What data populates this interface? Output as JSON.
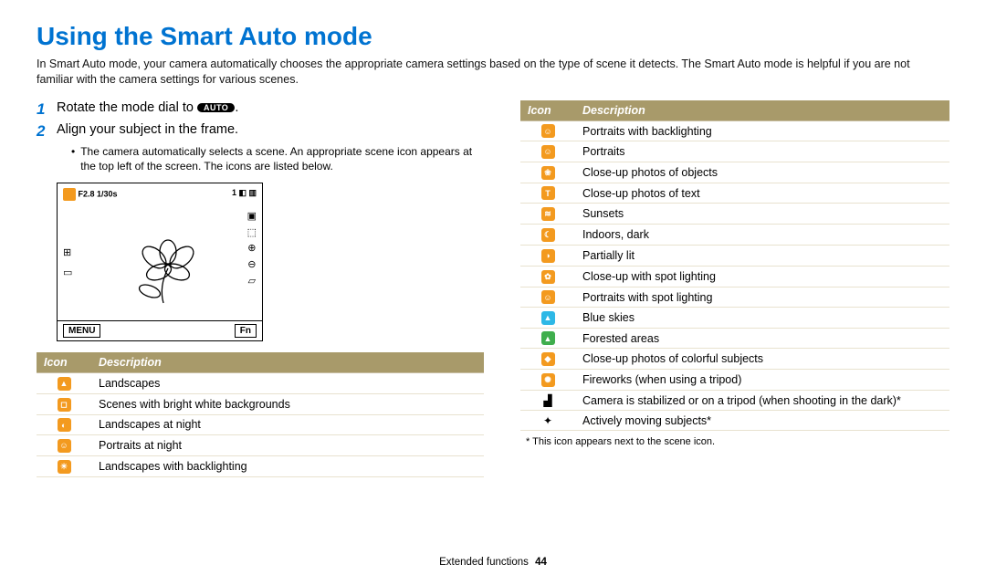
{
  "title": "Using the Smart Auto mode",
  "intro": "In Smart Auto mode, your camera automatically chooses the appropriate camera settings based on the type of scene it detects. The Smart Auto mode is helpful if you are not familiar with the camera settings for various scenes.",
  "steps": {
    "s1": "Rotate the mode dial to",
    "s1_pill": "AUTO",
    "s1_tail": ".",
    "s2": "Align your subject in the frame.",
    "bullet": "The camera automatically selects a scene. An appropriate scene icon appears at the top left of the screen. The icons are listed below."
  },
  "screen": {
    "exposure": "F2.8 1/30s",
    "top_right": "1 ◧ ▥",
    "menu": "MENU",
    "fn": "Fn"
  },
  "headers": {
    "icon": "Icon",
    "desc": "Description"
  },
  "t1": [
    {
      "c": "#f39a1f",
      "g": "▲",
      "d": "Landscapes"
    },
    {
      "c": "#f39a1f",
      "g": "◻",
      "d": "Scenes with bright white backgrounds"
    },
    {
      "c": "#f39a1f",
      "g": "◐",
      "d": "Landscapes at night"
    },
    {
      "c": "#f39a1f",
      "g": "☺",
      "d": "Portraits at night"
    },
    {
      "c": "#f39a1f",
      "g": "☀",
      "d": "Landscapes with backlighting"
    }
  ],
  "t2": [
    {
      "c": "#f39a1f",
      "g": "☺",
      "d": "Portraits with backlighting"
    },
    {
      "c": "#f39a1f",
      "g": "☺",
      "d": "Portraits"
    },
    {
      "c": "#f39a1f",
      "g": "❀",
      "d": "Close-up photos of objects"
    },
    {
      "c": "#f39a1f",
      "g": "T",
      "d": "Close-up photos of text"
    },
    {
      "c": "#f39a1f",
      "g": "≋",
      "d": "Sunsets"
    },
    {
      "c": "#f39a1f",
      "g": "☾",
      "d": "Indoors, dark"
    },
    {
      "c": "#f39a1f",
      "g": "◑",
      "d": "Partially lit"
    },
    {
      "c": "#f39a1f",
      "g": "✿",
      "d": "Close-up with spot lighting"
    },
    {
      "c": "#f39a1f",
      "g": "☺",
      "d": "Portraits with spot lighting"
    },
    {
      "c": "#2eb8e6",
      "g": "▲",
      "d": "Blue skies"
    },
    {
      "c": "#3fae4d",
      "g": "▲",
      "d": "Forested areas"
    },
    {
      "c": "#f39a1f",
      "g": "◆",
      "d": "Close-up photos of colorful subjects"
    },
    {
      "c": "#f39a1f",
      "g": "✺",
      "d": "Fireworks (when using a tripod)"
    },
    {
      "plain": true,
      "g": "▟",
      "d": "Camera is stabilized or on a tripod (when shooting in the dark)*"
    },
    {
      "plain": true,
      "g": "✦",
      "d": "Actively moving subjects*"
    }
  ],
  "footnote": "* This icon appears next to the scene icon.",
  "footer": {
    "section": "Extended functions",
    "page": "44"
  },
  "colors": {
    "heading": "#0073d1",
    "table_header_bg": "#a89a6a",
    "row_border": "#e8e2cf"
  }
}
